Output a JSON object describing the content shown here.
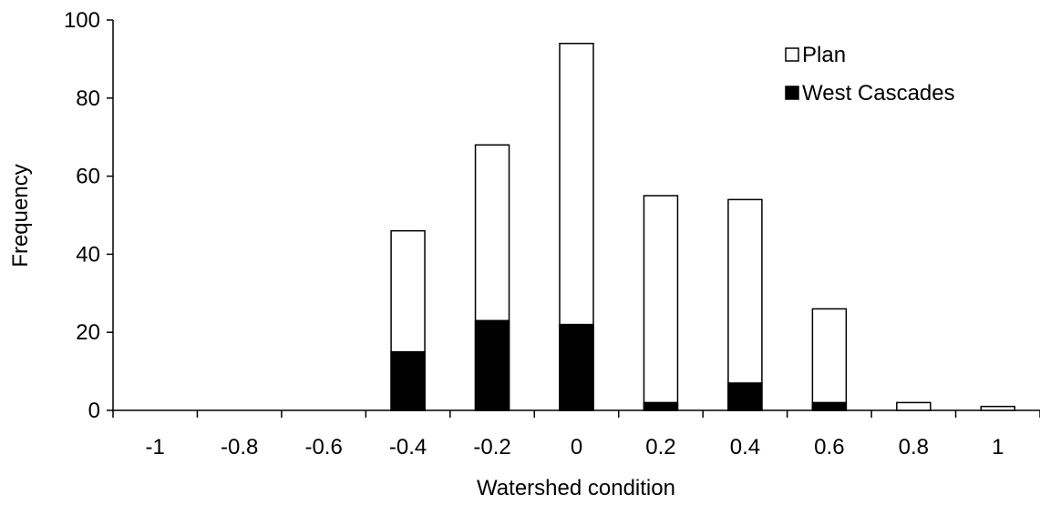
{
  "chart_data": {
    "type": "bar",
    "stacking": "overlay",
    "categories": [
      "-1",
      "-0.8",
      "-0.6",
      "-0.4",
      "-0.2",
      "0",
      "0.2",
      "0.4",
      "0.6",
      "0.8",
      "1"
    ],
    "series": [
      {
        "name": "Plan",
        "color": "#ffffff",
        "values": [
          0,
          0,
          0,
          46,
          68,
          94,
          55,
          54,
          26,
          2,
          1
        ]
      },
      {
        "name": "West Cascades",
        "color": "#000000",
        "values": [
          0,
          0,
          0,
          15,
          23,
          22,
          2,
          7,
          2,
          0,
          0
        ]
      }
    ],
    "xlabel": "Watershed condition",
    "ylabel": "Frequency",
    "ylim": [
      0,
      100
    ],
    "yticks": [
      0,
      20,
      40,
      60,
      80,
      100
    ],
    "grid": false,
    "legend": "top-right"
  }
}
